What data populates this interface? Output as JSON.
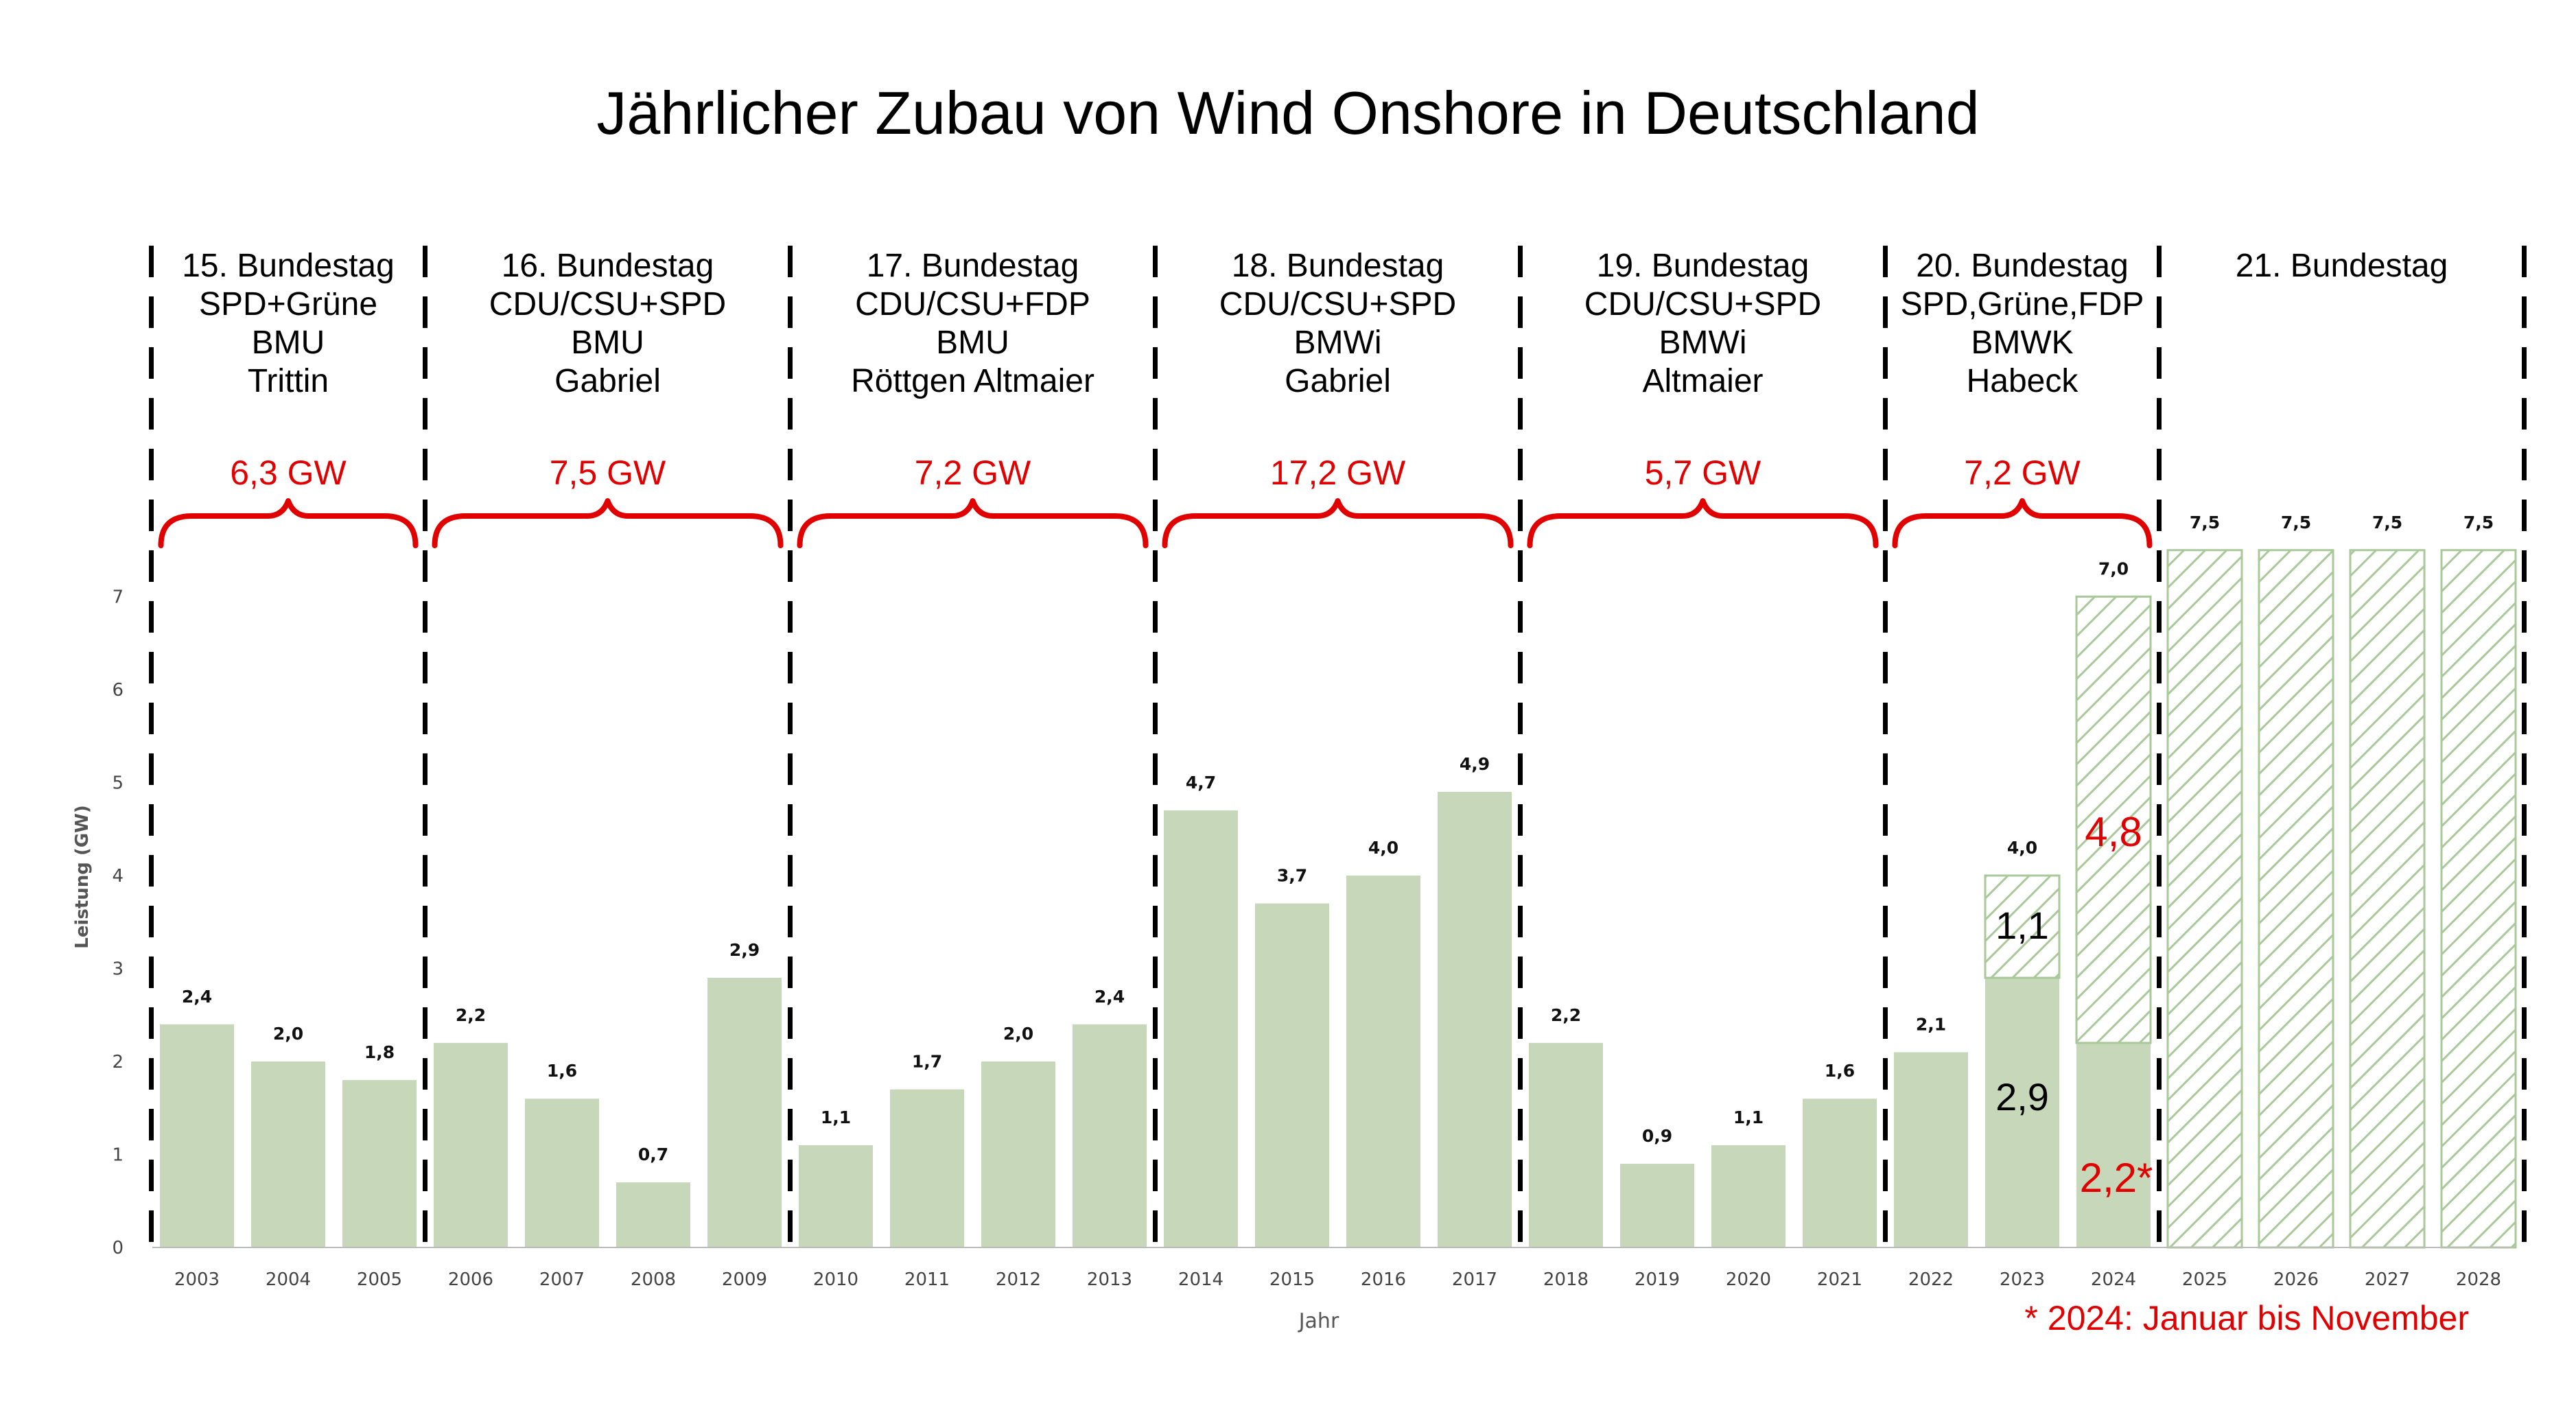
{
  "chart_data": {
    "type": "bar",
    "title": "Jährlicher Zubau von Wind Onshore in Deutschland",
    "xlabel": "Jahr",
    "ylabel": "Leistung (GW)",
    "ylim": [
      0,
      7.5
    ],
    "yticks": [
      "0",
      "1",
      "2",
      "3",
      "4",
      "5",
      "6",
      "7"
    ],
    "grid": false,
    "categories": [
      "2003",
      "2004",
      "2005",
      "2006",
      "2007",
      "2008",
      "2009",
      "2010",
      "2011",
      "2012",
      "2013",
      "2014",
      "2015",
      "2016",
      "2017",
      "2018",
      "2019",
      "2020",
      "2021",
      "2022",
      "2023",
      "2024",
      "2025",
      "2026",
      "2027",
      "2028"
    ],
    "series": [
      {
        "values": [
          2.4,
          2.0,
          1.8,
          2.2,
          1.6,
          0.7,
          2.9,
          1.1,
          1.7,
          2.0,
          2.4,
          4.7,
          3.7,
          4.0,
          4.9,
          2.2,
          0.9,
          1.1,
          1.6,
          2.1,
          2.9,
          2.2,
          null,
          null,
          null,
          null
        ]
      },
      {
        "values": [
          null,
          null,
          null,
          null,
          null,
          null,
          null,
          null,
          null,
          null,
          null,
          null,
          null,
          null,
          null,
          null,
          null,
          null,
          null,
          null,
          1.1,
          4.8,
          7.5,
          7.5,
          7.5,
          7.5
        ]
      }
    ],
    "data_labels": [
      "2,4",
      "2,0",
      "1,8",
      "2,2",
      "1,6",
      "0,7",
      "2,9",
      "1,1",
      "1,7",
      "2,0",
      "2,4",
      "4,7",
      "3,7",
      "4,0",
      "4,9",
      "2,2",
      "0,9",
      "1,1",
      "1,6",
      "2,1",
      "4,0",
      "7,0",
      "7,5",
      "7,5",
      "7,5",
      "7,5"
    ],
    "annotations": {
      "v2023_actual": "2,9",
      "v2023_gap": "1,1",
      "v2024_actual": "2,2*",
      "v2024_gap": "4,8"
    },
    "periods": [
      {
        "lines": [
          "15. Bundestag",
          "SPD+Grüne",
          "BMU",
          "Trittin"
        ],
        "total": "6,3 GW",
        "start": 0,
        "end": 2
      },
      {
        "lines": [
          "16. Bundestag",
          "CDU/CSU+SPD",
          "BMU",
          "Gabriel"
        ],
        "total": "7,5 GW",
        "start": 3,
        "end": 6
      },
      {
        "lines": [
          "17. Bundestag",
          "CDU/CSU+FDP",
          "BMU",
          "Röttgen     Altmaier"
        ],
        "total": "7,2 GW",
        "start": 7,
        "end": 10
      },
      {
        "lines": [
          "18. Bundestag",
          "CDU/CSU+SPD",
          "BMWi",
          "Gabriel"
        ],
        "total": "17,2 GW",
        "start": 11,
        "end": 14
      },
      {
        "lines": [
          "19. Bundestag",
          "CDU/CSU+SPD",
          "BMWi",
          "Altmaier"
        ],
        "total": "5,7 GW",
        "start": 15,
        "end": 18
      },
      {
        "lines": [
          "20. Bundestag",
          "SPD,Grüne,FDP",
          "BMWK",
          "Habeck"
        ],
        "total": "7,2 GW",
        "start": 19,
        "end": 21
      },
      {
        "lines": [
          "21. Bundestag"
        ],
        "total": "",
        "start": 22,
        "end": 25
      }
    ],
    "footnote": "* 2024: Januar bis November",
    "colors": {
      "bar": "#c6d8b9",
      "hatch": "#a9c99a",
      "accent": "#e00000"
    }
  }
}
